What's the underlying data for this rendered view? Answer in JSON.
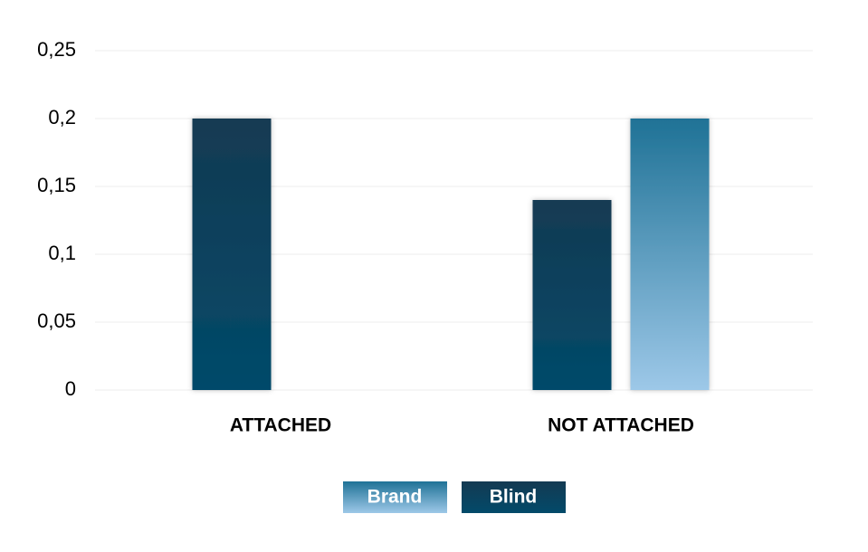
{
  "chart_data": {
    "type": "bar",
    "categories": [
      "ATTACHED",
      "NOT ATTACHED"
    ],
    "series": [
      {
        "name": "Brand",
        "color": "#5a9cc4",
        "gradient": [
          "#1f7296",
          "#9dc8e8"
        ],
        "values": [
          0,
          0.2
        ]
      },
      {
        "name": "Blind",
        "color": "#0a4260",
        "gradient": [
          "#143a52",
          "#024a6a"
        ],
        "values": [
          0.2,
          0.14
        ]
      }
    ],
    "ylim": [
      0,
      0.25
    ],
    "yticks": [
      0,
      {
        "value": 0.05,
        "label": "0,05"
      },
      {
        "value": 0.1,
        "label": "0,1"
      },
      {
        "value": 0.15,
        "label": "0,15"
      },
      {
        "value": 0.2,
        "label": "0,2"
      },
      {
        "value": 0.25,
        "label": "0,25"
      }
    ],
    "grid": true,
    "legend": "bottom"
  }
}
